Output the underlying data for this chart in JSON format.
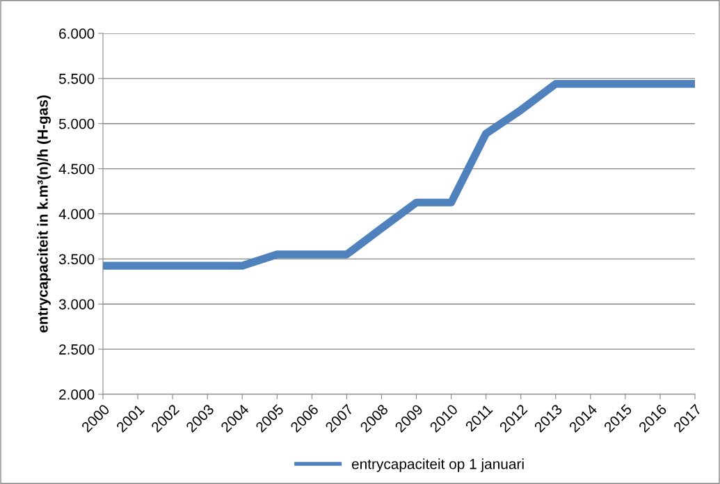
{
  "chart_data": {
    "type": "line",
    "ylabel": "entrycapaciteit in k.m³(n)/h (H-gas)",
    "categories": [
      "2000",
      "2001",
      "2002",
      "2003",
      "2004",
      "2005",
      "2006",
      "2007",
      "2008",
      "2009",
      "2010",
      "2011",
      "2012",
      "2013",
      "2014",
      "2015",
      "2016",
      "2017"
    ],
    "series": [
      {
        "name": "entrycapaciteit op 1 januari",
        "color": "#4f81bd",
        "values": [
          3425,
          3425,
          3425,
          3425,
          3425,
          3550,
          3550,
          3550,
          3840,
          4125,
          4125,
          4890,
          5150,
          5440,
          5440,
          5440,
          5440,
          5440
        ]
      }
    ],
    "ylim": [
      2000,
      6000
    ],
    "yticks": [
      {
        "value": 2000,
        "label": "2.000"
      },
      {
        "value": 2500,
        "label": "2.500"
      },
      {
        "value": 3000,
        "label": "3.000"
      },
      {
        "value": 3500,
        "label": "3.500"
      },
      {
        "value": 4000,
        "label": "4.000"
      },
      {
        "value": 4500,
        "label": "4.500"
      },
      {
        "value": 5000,
        "label": "5.000"
      },
      {
        "value": 5500,
        "label": "5.500"
      },
      {
        "value": 6000,
        "label": "6.000"
      }
    ],
    "grid": "y",
    "legend": "bottom",
    "marker": "none",
    "line_style": "solid"
  }
}
